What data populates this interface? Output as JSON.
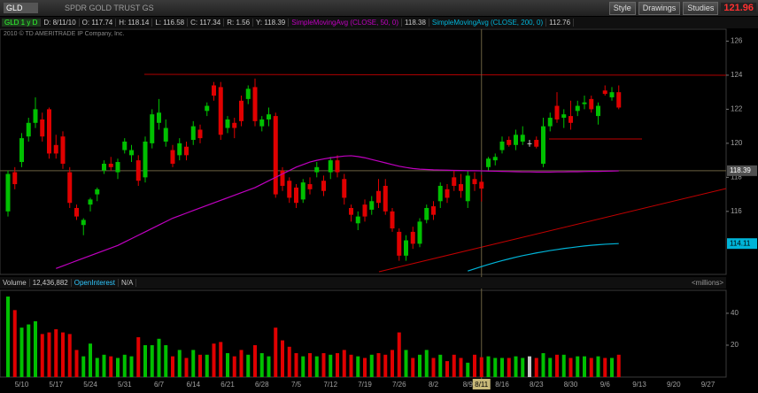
{
  "toolbar": {
    "symbol": "GLD",
    "description": "SPDR GOLD TRUST GS",
    "buttons": [
      "Style",
      "Drawings",
      "Studies"
    ],
    "last_price": "121.96"
  },
  "status": {
    "label": "GLD 1 y D",
    "items": [
      "D: 8/11/10",
      "O: 117.74",
      "H: 118.14",
      "L: 116.58",
      "C: 117.34",
      "R: 1.56",
      "Y: 118.39"
    ],
    "studies": [
      {
        "name": "SimpleMovingAvg (CLOSE, 50, 0)",
        "value": "118.38"
      },
      {
        "name": "SimpleMovingAvg (CLOSE, 200, 0)",
        "value": "112.76"
      }
    ]
  },
  "copyright": "2010 © TD AMERITRADE IP Company, Inc.",
  "chart_data": [
    {
      "type": "candlestick",
      "categories": [
        null,
        null,
        "5/10",
        null,
        null,
        null,
        null,
        "5/17",
        null,
        null,
        null,
        null,
        "5/24",
        null,
        null,
        null,
        null,
        "5/31",
        null,
        null,
        null,
        null,
        "6/7",
        null,
        null,
        null,
        null,
        "6/14",
        null,
        null,
        null,
        null,
        "6/21",
        null,
        null,
        null,
        null,
        "6/28",
        null,
        null,
        null,
        null,
        "7/5",
        null,
        null,
        null,
        null,
        "7/12",
        null,
        null,
        null,
        null,
        "7/19",
        null,
        null,
        null,
        null,
        "7/26",
        null,
        null,
        null,
        null,
        "8/2",
        null,
        null,
        null,
        null,
        "8/9",
        null,
        "8/11",
        null,
        null,
        "8/16",
        null,
        null,
        null,
        null,
        "8/23",
        null,
        null,
        null,
        null,
        "8/30",
        null,
        null,
        null,
        null,
        "9/6",
        null,
        null,
        null,
        null,
        "9/13",
        null,
        null,
        null,
        null,
        "9/20",
        null,
        null,
        null,
        null,
        "9/27",
        null,
        null
      ],
      "open": [
        116,
        118.3,
        118.9,
        120.4,
        121.2,
        121.4,
        122,
        119.9,
        120.4,
        118.3,
        116.2,
        115.2,
        116.4,
        117,
        118.4,
        118.8,
        118.3,
        119.6,
        119.3,
        119,
        118,
        120,
        121.2,
        120.1,
        119.6,
        119.3,
        119.8,
        120.2,
        120.8,
        121.9,
        123.4,
        123.3,
        120.9,
        121.2,
        122.5,
        122.6,
        123.3,
        121,
        121.4,
        121.6,
        118.4,
        117.8,
        117.4,
        116.7,
        117.6,
        118.3,
        117.8,
        118.3,
        119,
        117.9,
        116.2,
        115.3,
        116.4,
        116.1,
        117.2,
        117.5,
        116,
        114.8,
        113.4,
        114.8,
        114.1,
        115.5,
        116.3,
        116.6,
        117.3,
        118,
        117.6,
        116.6,
        117.9,
        117.74,
        118.6,
        119,
        119.6,
        120.2,
        119.9,
        120.1,
        120,
        120.2,
        118.8,
        121,
        122.2,
        121.5,
        121.6,
        121.9,
        122.3,
        122.6,
        121.6,
        123.1,
        122.7,
        123,
        null,
        null,
        null,
        null,
        null,
        null,
        null,
        null,
        null,
        null,
        null,
        null,
        null,
        null,
        null
      ],
      "high": [
        118.4,
        118.6,
        120.6,
        121.5,
        122.7,
        121.8,
        122.1,
        120.5,
        120.7,
        118.6,
        116.4,
        115.6,
        116.8,
        117.4,
        119,
        119.2,
        119.1,
        120.3,
        119.9,
        119.3,
        120.4,
        122,
        122.6,
        121.4,
        119.9,
        120.3,
        120.1,
        121.3,
        121.1,
        122.4,
        123.6,
        123.6,
        121.6,
        121.5,
        122.8,
        123.4,
        123.8,
        121.6,
        122.1,
        121.8,
        118.6,
        118,
        117.6,
        117.9,
        118,
        118.9,
        118.1,
        119.2,
        119.3,
        118.2,
        116.4,
        116,
        116.7,
        116.9,
        117.9,
        117.9,
        116.2,
        115,
        114.6,
        115.1,
        115.6,
        116.4,
        116.6,
        117.7,
        117.6,
        118.4,
        118.2,
        118.4,
        118.3,
        118.14,
        119.2,
        119.4,
        120.4,
        120.4,
        120.8,
        121,
        120.2,
        120.4,
        121.5,
        121.8,
        123,
        122,
        122.5,
        122.5,
        122.8,
        122.8,
        122.4,
        123.4,
        123.3,
        123.4,
        null,
        null,
        null,
        null,
        null,
        null,
        null,
        null,
        null,
        null,
        null,
        null,
        null,
        null,
        null
      ],
      "low": [
        115.7,
        117.3,
        118.6,
        120.1,
        120.9,
        120.1,
        119.1,
        119.1,
        118.5,
        116.2,
        115.5,
        114.6,
        116,
        116.6,
        118.2,
        118.4,
        117.9,
        119.4,
        118.9,
        117.5,
        117.7,
        119.7,
        120.8,
        119.8,
        118.6,
        119,
        119,
        119.9,
        120,
        121.6,
        122.5,
        120.2,
        120.6,
        120.3,
        121,
        122.3,
        121,
        120.7,
        121,
        116.8,
        117.2,
        116.5,
        116.2,
        116.5,
        117,
        118,
        116.9,
        117.9,
        118,
        116.4,
        115.4,
        114.9,
        115.4,
        115.8,
        116.2,
        115.8,
        114.8,
        113.1,
        113.1,
        113.8,
        113.9,
        115.3,
        115.5,
        116.2,
        116.5,
        117.2,
        116.8,
        116.2,
        117.2,
        116.58,
        118.4,
        118.7,
        119.4,
        119.8,
        119.6,
        119.9,
        119.8,
        119.7,
        118.6,
        120.7,
        121.2,
        120.9,
        120.8,
        121.6,
        122,
        121.8,
        121.1,
        122.8,
        122.5,
        122,
        null,
        null,
        null,
        null,
        null,
        null,
        null,
        null,
        null,
        null,
        null,
        null,
        null,
        null,
        null
      ],
      "close": [
        118.2,
        117.6,
        120.3,
        121.2,
        122,
        120.4,
        119.4,
        119.4,
        118.8,
        116.5,
        115.7,
        115.5,
        116.7,
        117.3,
        118.8,
        118.6,
        118.9,
        120.1,
        119.6,
        117.8,
        120.1,
        121.7,
        121.8,
        120.9,
        118.8,
        120,
        119.3,
        121,
        120.3,
        122.2,
        122.8,
        120.5,
        121.4,
        120.9,
        121.3,
        123.2,
        121.3,
        121.4,
        121.7,
        117,
        117.5,
        116.8,
        116.5,
        117.7,
        117.3,
        118.6,
        117.2,
        119,
        118.3,
        116.8,
        115.8,
        115.7,
        115.7,
        116.6,
        116.5,
        116,
        115,
        113.4,
        114.3,
        114.1,
        115.4,
        116.2,
        115.8,
        117.5,
        116.8,
        117.5,
        117.2,
        118.1,
        117.6,
        117.34,
        119.1,
        119.2,
        120.1,
        119.9,
        120.5,
        120.5,
        120,
        119.8,
        121,
        121.5,
        121.4,
        121.7,
        121.2,
        122.2,
        122.4,
        122,
        122.2,
        122.9,
        123,
        122.1,
        null,
        null,
        null,
        null,
        null,
        null,
        null,
        null,
        null,
        null,
        null,
        null,
        null,
        null,
        null
      ],
      "up_color": "#00c000",
      "down_color": "#e00000",
      "flat_color": "#c8c8c8",
      "series": [
        {
          "name": "SimpleMovingAvg (CLOSE, 50, 0)",
          "color": "#c000c0",
          "values": [
            null,
            null,
            null,
            null,
            null,
            null,
            null,
            112.65,
            112.8,
            112.95,
            113.1,
            113.25,
            113.4,
            113.55,
            113.7,
            113.85,
            114,
            114.2,
            114.4,
            114.6,
            114.8,
            115,
            115.2,
            115.4,
            115.6,
            115.75,
            115.9,
            116.05,
            116.2,
            116.35,
            116.5,
            116.65,
            116.8,
            116.95,
            117.1,
            117.25,
            117.4,
            117.6,
            117.8,
            118,
            118.2,
            118.4,
            118.6,
            118.75,
            118.9,
            119,
            119.08,
            119.15,
            119.2,
            119.25,
            119.27,
            119.22,
            119.15,
            119.05,
            118.95,
            118.85,
            118.75,
            118.65,
            118.58,
            118.52,
            118.48,
            118.46,
            118.44,
            118.43,
            118.42,
            118.41,
            118.4,
            118.39,
            118.39,
            118.38,
            118.37,
            118.36,
            118.35,
            118.34,
            118.33,
            118.32,
            118.32,
            118.31,
            118.31,
            118.31,
            118.32,
            118.32,
            118.33,
            118.33,
            118.34,
            118.35,
            118.35,
            118.36,
            118.37,
            118.38,
            null,
            null,
            null,
            null,
            null,
            null,
            null,
            null,
            null,
            null,
            null,
            null,
            null,
            null,
            null
          ]
        },
        {
          "name": "SimpleMovingAvg (CLOSE, 200, 0)",
          "color": "#00b4d8",
          "last_value_label": true,
          "values": [
            null,
            null,
            null,
            null,
            null,
            null,
            null,
            null,
            null,
            null,
            null,
            null,
            null,
            null,
            null,
            null,
            null,
            null,
            null,
            null,
            null,
            null,
            null,
            null,
            null,
            null,
            null,
            null,
            null,
            null,
            null,
            null,
            null,
            null,
            null,
            null,
            null,
            null,
            null,
            null,
            null,
            null,
            null,
            null,
            null,
            null,
            null,
            null,
            null,
            null,
            null,
            null,
            null,
            null,
            null,
            null,
            null,
            null,
            null,
            null,
            null,
            null,
            null,
            null,
            null,
            null,
            null,
            112.5,
            112.63,
            112.76,
            112.88,
            113,
            113.11,
            113.21,
            113.31,
            113.4,
            113.48,
            113.56,
            113.63,
            113.7,
            113.76,
            113.82,
            113.87,
            113.92,
            113.97,
            114.01,
            114.04,
            114.07,
            114.09,
            114.11,
            null,
            null,
            null,
            null,
            null,
            null,
            null,
            null,
            null,
            null,
            null,
            null,
            null,
            null,
            null
          ]
        }
      ],
      "crosshair": {
        "x": "8/11",
        "y": 118.39
      },
      "ylim": [
        112.3,
        126.7
      ],
      "yticks": [
        116,
        118,
        120,
        122,
        124,
        126
      ],
      "grid": false
    },
    {
      "type": "bar",
      "title": "Volume",
      "readout": "12,436,882",
      "study": "OpenInterest",
      "study_value": "N/A",
      "units": "<millions>",
      "values": [
        50.5,
        42,
        31,
        33,
        35,
        27,
        28,
        30,
        28,
        27,
        17,
        13,
        21,
        12,
        14,
        13,
        12,
        14,
        13,
        25,
        20,
        20,
        24,
        20,
        13,
        17,
        12,
        17,
        14,
        14,
        21,
        22,
        15,
        13,
        17,
        14,
        20,
        15,
        13,
        31,
        23,
        19,
        15,
        13,
        15,
        13,
        15,
        14,
        15,
        17,
        14,
        13,
        12,
        14,
        15,
        14,
        17,
        28,
        17,
        12,
        14,
        17,
        12,
        14,
        10,
        14,
        12,
        9,
        14,
        12.436882,
        13,
        12,
        12,
        12,
        13,
        12,
        13,
        12,
        15,
        12,
        14,
        14,
        12,
        13,
        13,
        12,
        13,
        12,
        12,
        14,
        null,
        null,
        null,
        null,
        null,
        null,
        null,
        null,
        null,
        null,
        null,
        null,
        null,
        null,
        null
      ],
      "ylim": [
        0,
        54.4
      ],
      "yticks": [
        20,
        40
      ]
    }
  ]
}
